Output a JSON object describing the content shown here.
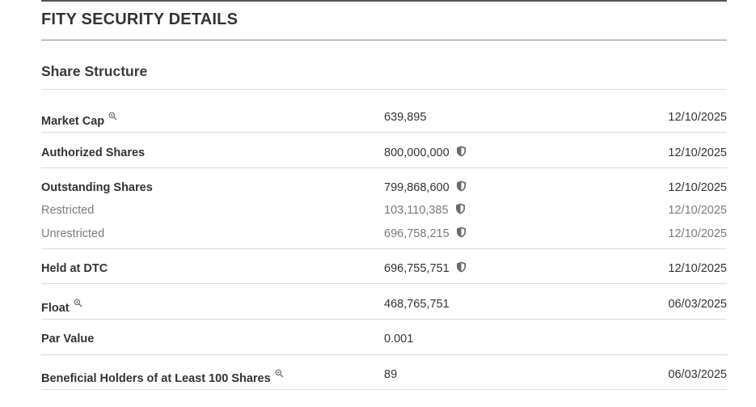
{
  "page": {
    "title": "FITY SECURITY DETAILS",
    "section_title": "Share Structure"
  },
  "rows": [
    {
      "label": "Market Cap",
      "value": "639,895",
      "date": "12/10/2025",
      "info_icon": "magnifier-icon"
    },
    {
      "label": "Authorized Shares",
      "value": "800,000,000",
      "date": "12/10/2025",
      "verified_icon": "shield-icon"
    },
    {
      "label": "Outstanding Shares",
      "value": "799,868,600",
      "date": "12/10/2025",
      "verified_icon": "shield-icon"
    },
    {
      "label": "Restricted",
      "value": "103,110,385",
      "date": "12/10/2025",
      "verified_icon": "shield-icon"
    },
    {
      "label": "Unrestricted",
      "value": "696,758,215",
      "date": "12/10/2025",
      "verified_icon": "shield-icon"
    },
    {
      "label": "Held at DTC",
      "value": "696,755,751",
      "date": "12/10/2025",
      "verified_icon": "shield-icon"
    },
    {
      "label": "Float",
      "value": "468,765,751",
      "date": "06/03/2025",
      "info_icon": "magnifier-icon"
    },
    {
      "label": "Par Value",
      "value": "0.001",
      "date": ""
    },
    {
      "label": "Beneficial Holders of at Least 100 Shares",
      "value": "89",
      "date": "06/03/2025",
      "info_icon": "magnifier-icon"
    }
  ],
  "colors": {
    "text": "#333333",
    "muted_text": "#7a7a7a",
    "divider": "#dcdcdc",
    "header_rule": "#555555",
    "icon": "#6b6b6b"
  }
}
